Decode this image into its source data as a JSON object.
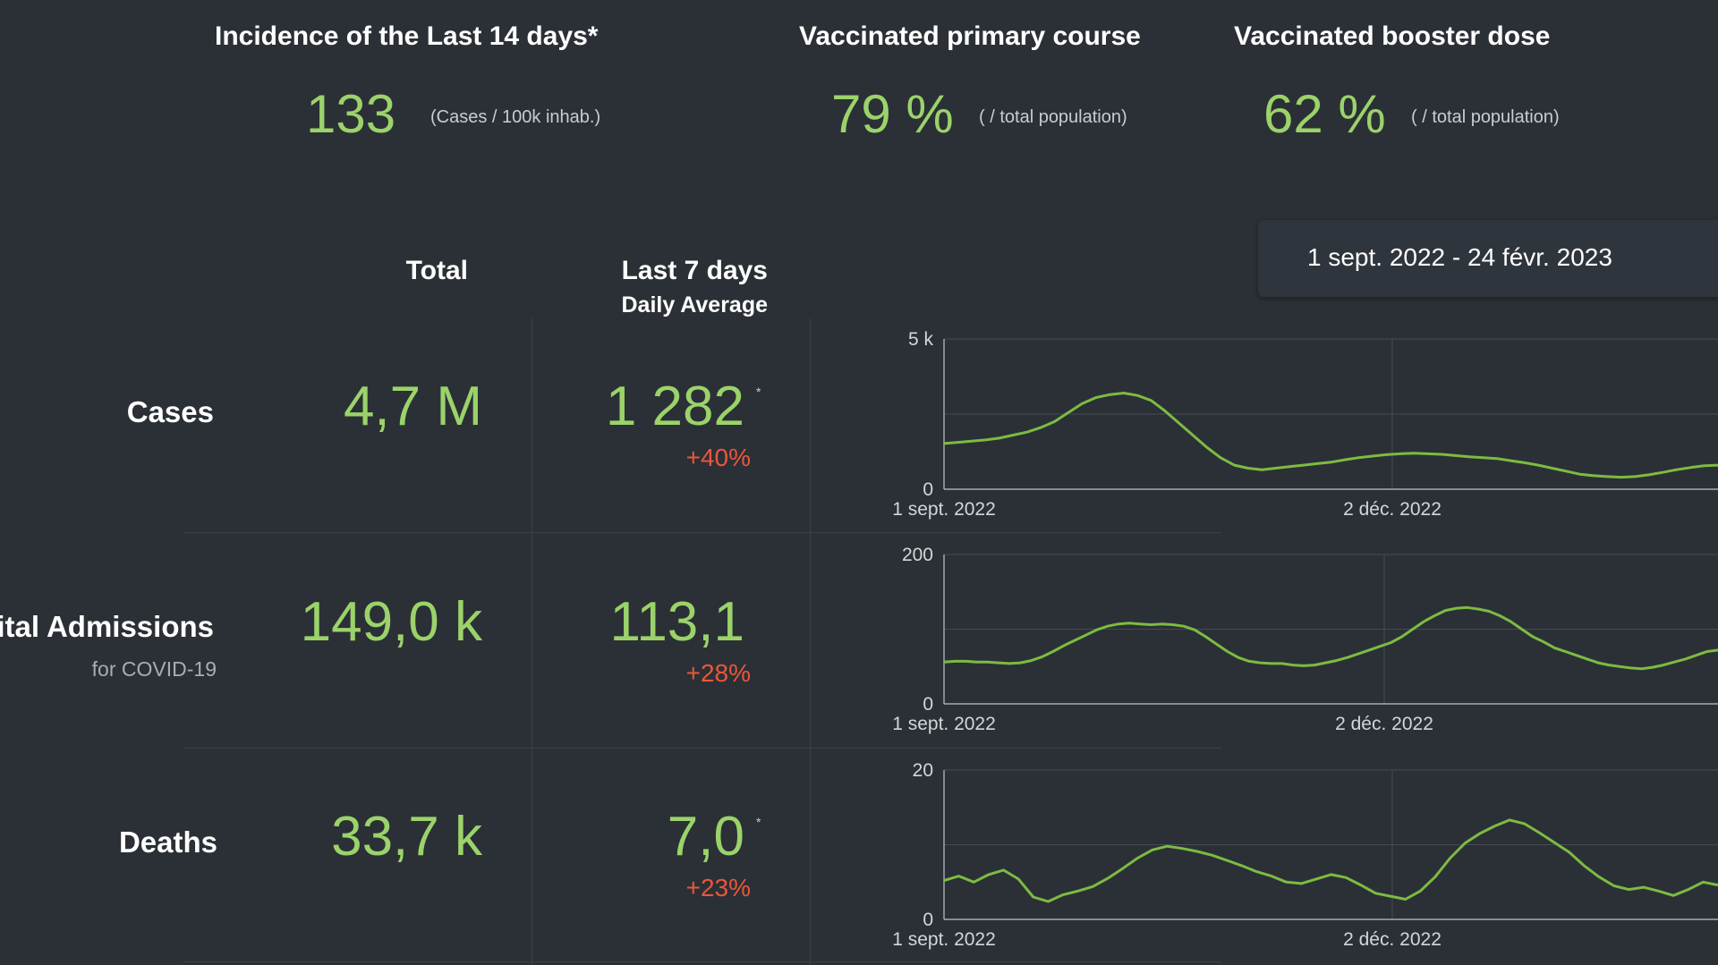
{
  "kpis": [
    {
      "title": "Incidence of the Last 14 days*",
      "value": "133",
      "unit": "(Cases / 100k inhab.)"
    },
    {
      "title": "Vaccinated primary course",
      "value": "79 %",
      "unit": "( / total population)"
    },
    {
      "title": "Vaccinated booster dose",
      "value": "62 %",
      "unit": "( / total population)"
    }
  ],
  "date_range": "1 sept. 2022 - 24 févr. 2023",
  "table": {
    "col_total": "Total",
    "col_last7": "Last 7 days",
    "col_last7_sub": "Daily Average",
    "rows": [
      {
        "label": "Cases",
        "sublabel": "",
        "total": "4,7 M",
        "avg": "1 282",
        "asterisk": "*",
        "change": "+40%"
      },
      {
        "label": "Hospital Admissions",
        "sublabel": "for COVID-19",
        "total": "149,0 k",
        "avg": "113,1",
        "asterisk": "",
        "change": "+28%"
      },
      {
        "label": "Deaths",
        "sublabel": "",
        "total": "33,7 k",
        "avg": "7,0",
        "asterisk": "*",
        "change": "+23%"
      }
    ]
  },
  "colors": {
    "value_green": "#9bd36a",
    "change_red": "#e8573a",
    "line_green": "#7dbb42",
    "background": "#2b3036"
  },
  "chart_data": [
    {
      "type": "line",
      "series_name": "Cases",
      "ylim": [
        0,
        5000
      ],
      "y_ticks": [
        "0",
        "5 k"
      ],
      "x_ticks": [
        "1 sept. 2022",
        "2 déc. 2022"
      ],
      "x_start": "2022-09-01",
      "values": [
        1520,
        1560,
        1600,
        1640,
        1700,
        1800,
        1900,
        2050,
        2250,
        2550,
        2850,
        3050,
        3150,
        3200,
        3120,
        2950,
        2600,
        2200,
        1800,
        1400,
        1050,
        800,
        700,
        650,
        700,
        750,
        800,
        850,
        900,
        980,
        1050,
        1100,
        1150,
        1180,
        1200,
        1180,
        1160,
        1120,
        1080,
        1050,
        1020,
        950,
        880,
        800,
        700,
        600,
        500,
        450,
        420,
        400,
        420,
        480,
        560,
        650,
        720,
        780,
        800
      ]
    },
    {
      "type": "line",
      "series_name": "Hospital Admissions",
      "ylim": [
        0,
        200
      ],
      "y_ticks": [
        "0",
        "200"
      ],
      "x_ticks": [
        "1 sept. 2022",
        "2 déc. 2022"
      ],
      "x_start": "2022-09-01",
      "values": [
        56,
        57,
        57,
        56,
        56,
        55,
        54,
        55,
        58,
        63,
        70,
        78,
        85,
        92,
        99,
        104,
        107,
        108,
        107,
        106,
        107,
        106,
        104,
        99,
        90,
        80,
        70,
        62,
        57,
        55,
        54,
        54,
        52,
        51,
        52,
        55,
        58,
        62,
        67,
        72,
        77,
        82,
        90,
        100,
        110,
        118,
        125,
        128,
        129,
        127,
        124,
        118,
        110,
        100,
        90,
        83,
        75,
        70,
        65,
        60,
        55,
        52,
        50,
        48,
        47,
        49,
        52,
        56,
        60,
        65,
        70,
        72
      ]
    },
    {
      "type": "line",
      "series_name": "Deaths",
      "ylim": [
        0,
        20
      ],
      "y_ticks": [
        "0",
        "20"
      ],
      "x_ticks": [
        "1 sept. 2022",
        "2 déc. 2022"
      ],
      "x_start": "2022-09-01",
      "values": [
        5.2,
        5.8,
        5.0,
        6.0,
        6.6,
        5.4,
        3.0,
        2.4,
        3.3,
        3.8,
        4.4,
        5.5,
        6.8,
        8.2,
        9.3,
        9.8,
        9.5,
        9.1,
        8.6,
        7.9,
        7.2,
        6.4,
        5.8,
        5.0,
        4.8,
        5.4,
        6.0,
        5.6,
        4.6,
        3.5,
        3.1,
        2.7,
        3.8,
        5.7,
        8.2,
        10.2,
        11.5,
        12.5,
        13.3,
        12.8,
        11.6,
        10.3,
        9.0,
        7.2,
        5.7,
        4.5,
        4.0,
        4.3,
        3.8,
        3.2,
        4.0,
        5.0,
        4.6
      ]
    }
  ]
}
